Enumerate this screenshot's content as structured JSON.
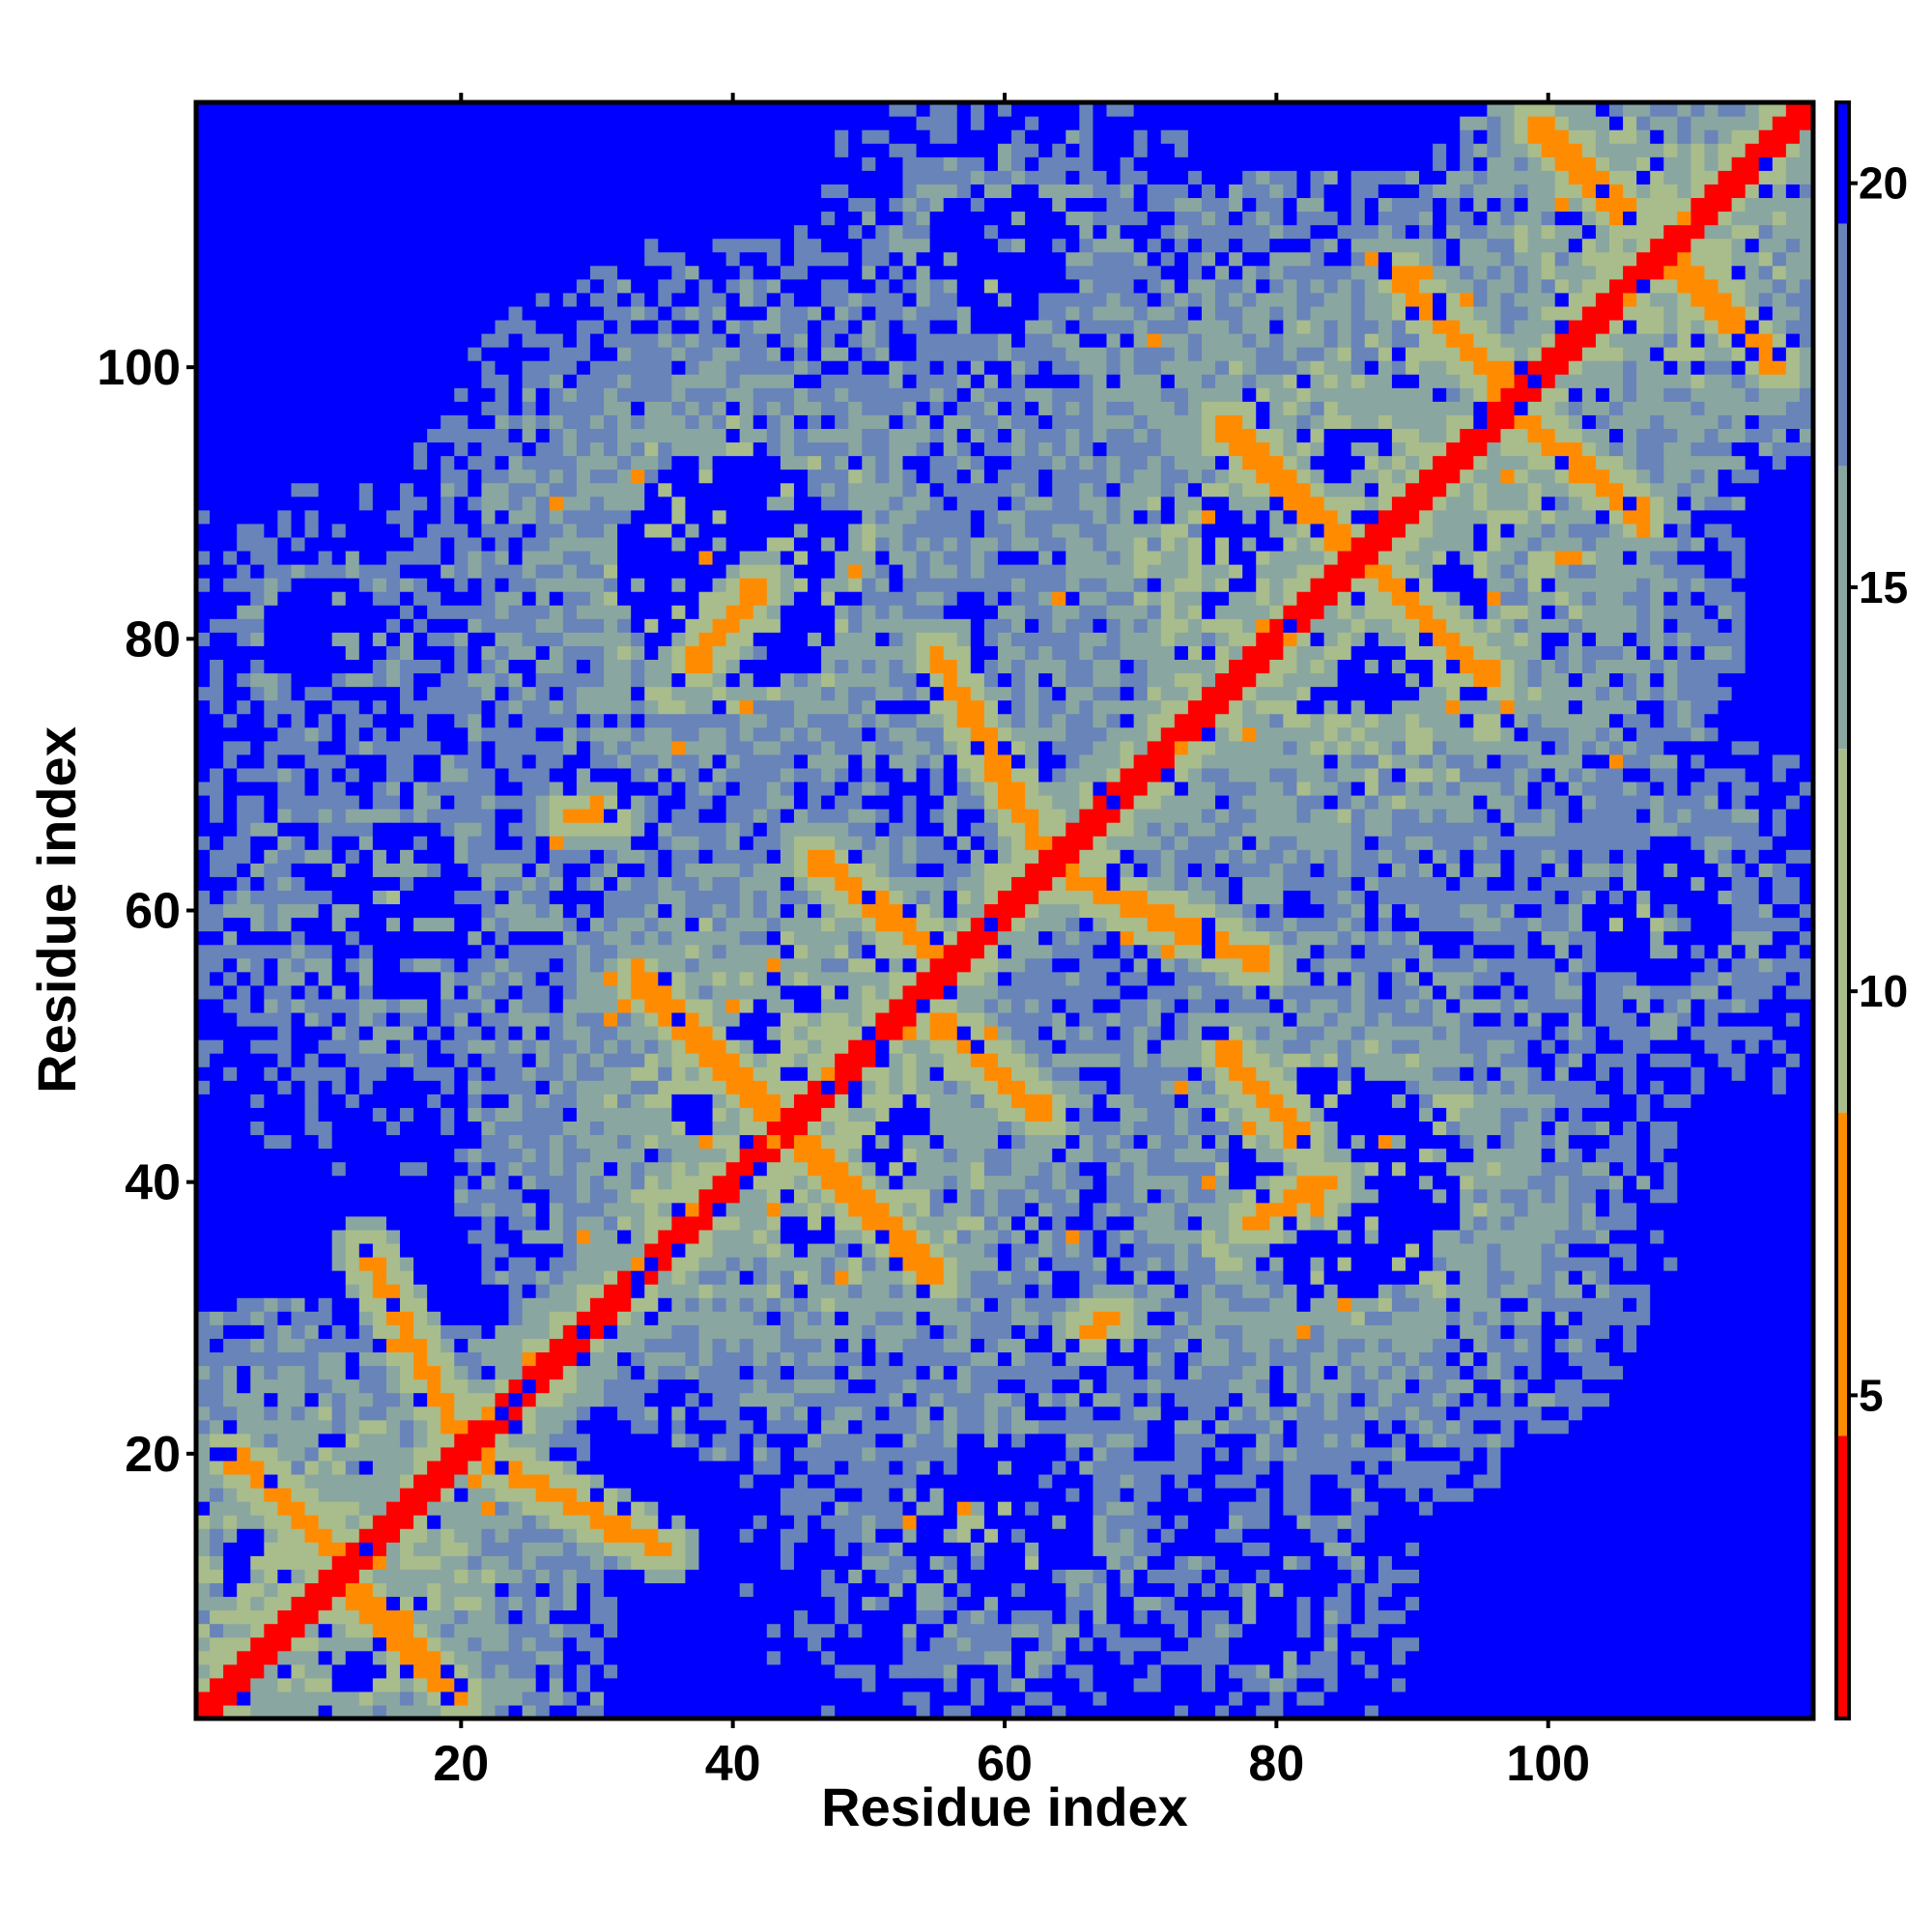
{
  "chart_data": {
    "type": "heatmap",
    "title": "",
    "xlabel": "Residue index",
    "ylabel": "Residue index",
    "n_residues": 119,
    "xlim": [
      1,
      119
    ],
    "ylim": [
      1,
      119
    ],
    "x_ticks": [
      {
        "value": 20,
        "label": "20"
      },
      {
        "value": 40,
        "label": "40"
      },
      {
        "value": 60,
        "label": "60"
      },
      {
        "value": 80,
        "label": "80"
      },
      {
        "value": 100,
        "label": "100"
      }
    ],
    "y_ticks": [
      {
        "value": 20,
        "label": "20"
      },
      {
        "value": 40,
        "label": "40"
      },
      {
        "value": 60,
        "label": "60"
      },
      {
        "value": 80,
        "label": "80"
      },
      {
        "value": 100,
        "label": "100"
      }
    ],
    "colorbar": {
      "range": [
        1,
        21
      ],
      "ticks": [
        {
          "value": 5,
          "label": "5"
        },
        {
          "value": 10,
          "label": "10"
        },
        {
          "value": 15,
          "label": "15"
        },
        {
          "value": 20,
          "label": "20"
        }
      ],
      "colors": [
        {
          "min": 1,
          "max": 4.5,
          "color": "#ff0000"
        },
        {
          "min": 4.5,
          "max": 8.5,
          "color": "#ff8c00"
        },
        {
          "min": 8.5,
          "max": 13,
          "color": "#a9bc8c"
        },
        {
          "min": 13,
          "max": 16.5,
          "color": "#8aa6a0"
        },
        {
          "min": 16.5,
          "max": 19.5,
          "color": "#6884b8"
        },
        {
          "min": 19.5,
          "max": 21,
          "color": "#0000ff"
        }
      ]
    },
    "diagonal_value": 2,
    "background_value": 21,
    "contact_arms": [
      {
        "start": [
          3,
          20
        ],
        "end": [
          12,
          12
        ],
        "value": 6
      },
      {
        "start": [
          12,
          10
        ],
        "end": [
          20,
          2
        ],
        "value": 6
      },
      {
        "start": [
          13,
          35
        ],
        "end": [
          20,
          21
        ],
        "value": 6
      },
      {
        "start": [
          21,
          20
        ],
        "end": [
          35,
          13
        ],
        "value": 6
      },
      {
        "start": [
          33,
          55
        ],
        "end": [
          43,
          45
        ],
        "value": 6
      },
      {
        "start": [
          45,
          43
        ],
        "end": [
          55,
          33
        ],
        "value": 6
      },
      {
        "start": [
          46,
          64
        ],
        "end": [
          56,
          56
        ],
        "value": 6
      },
      {
        "start": [
          55,
          52
        ],
        "end": [
          63,
          45
        ],
        "value": 6
      },
      {
        "start": [
          55,
          79
        ],
        "end": [
          63,
          64
        ],
        "value": 6
      },
      {
        "start": [
          64,
          63
        ],
        "end": [
          79,
          56
        ],
        "value": 6
      },
      {
        "start": [
          76,
          96
        ],
        "end": [
          85,
          87
        ],
        "value": 6
      },
      {
        "start": [
          86,
          86
        ],
        "end": [
          96,
          77
        ],
        "value": 6
      },
      {
        "start": [
          89,
          107
        ],
        "end": [
          97,
          98
        ],
        "value": 6
      },
      {
        "start": [
          97,
          97
        ],
        "end": [
          107,
          89
        ],
        "value": 6
      },
      {
        "start": [
          99,
          118
        ],
        "end": [
          106,
          111
        ],
        "value": 6
      },
      {
        "start": [
          108,
          109
        ],
        "end": [
          117,
          100
        ],
        "value": 6
      },
      {
        "start": [
          37,
          78
        ],
        "end": [
          42,
          84
        ],
        "value": 7
      },
      {
        "start": [
          78,
          37
        ],
        "end": [
          84,
          40
        ],
        "value": 7
      },
      {
        "start": [
          76,
          50
        ],
        "end": [
          82,
          43
        ],
        "value": 7
      },
      {
        "start": [
          66,
          29
        ],
        "end": [
          68,
          30
        ],
        "value": 7
      },
      {
        "start": [
          28,
          67
        ],
        "end": [
          31,
          67
        ],
        "value": 7
      }
    ],
    "dense_regions": [
      {
        "center": [
          10,
          10
        ],
        "radius": 22,
        "value": 11
      },
      {
        "center": [
          45,
          45
        ],
        "radius": 26,
        "value": 11
      },
      {
        "center": [
          85,
          85
        ],
        "radius": 30,
        "value": 11
      },
      {
        "center": [
          108,
          108
        ],
        "radius": 18,
        "value": 11
      },
      {
        "center": [
          40,
          85
        ],
        "radius": 25,
        "value": 12
      },
      {
        "center": [
          85,
          40
        ],
        "radius": 25,
        "value": 12
      },
      {
        "center": [
          15,
          60
        ],
        "radius": 20,
        "value": 14
      },
      {
        "center": [
          60,
          15
        ],
        "radius": 20,
        "value": 14
      },
      {
        "center": [
          80,
          10
        ],
        "radius": 14,
        "value": 15
      },
      {
        "center": [
          10,
          80
        ],
        "radius": 14,
        "value": 15
      },
      {
        "center": [
          108,
          60
        ],
        "radius": 16,
        "value": 14
      },
      {
        "center": [
          60,
          108
        ],
        "radius": 16,
        "value": 14
      }
    ],
    "grid": false,
    "legend": "colorbar-right"
  }
}
